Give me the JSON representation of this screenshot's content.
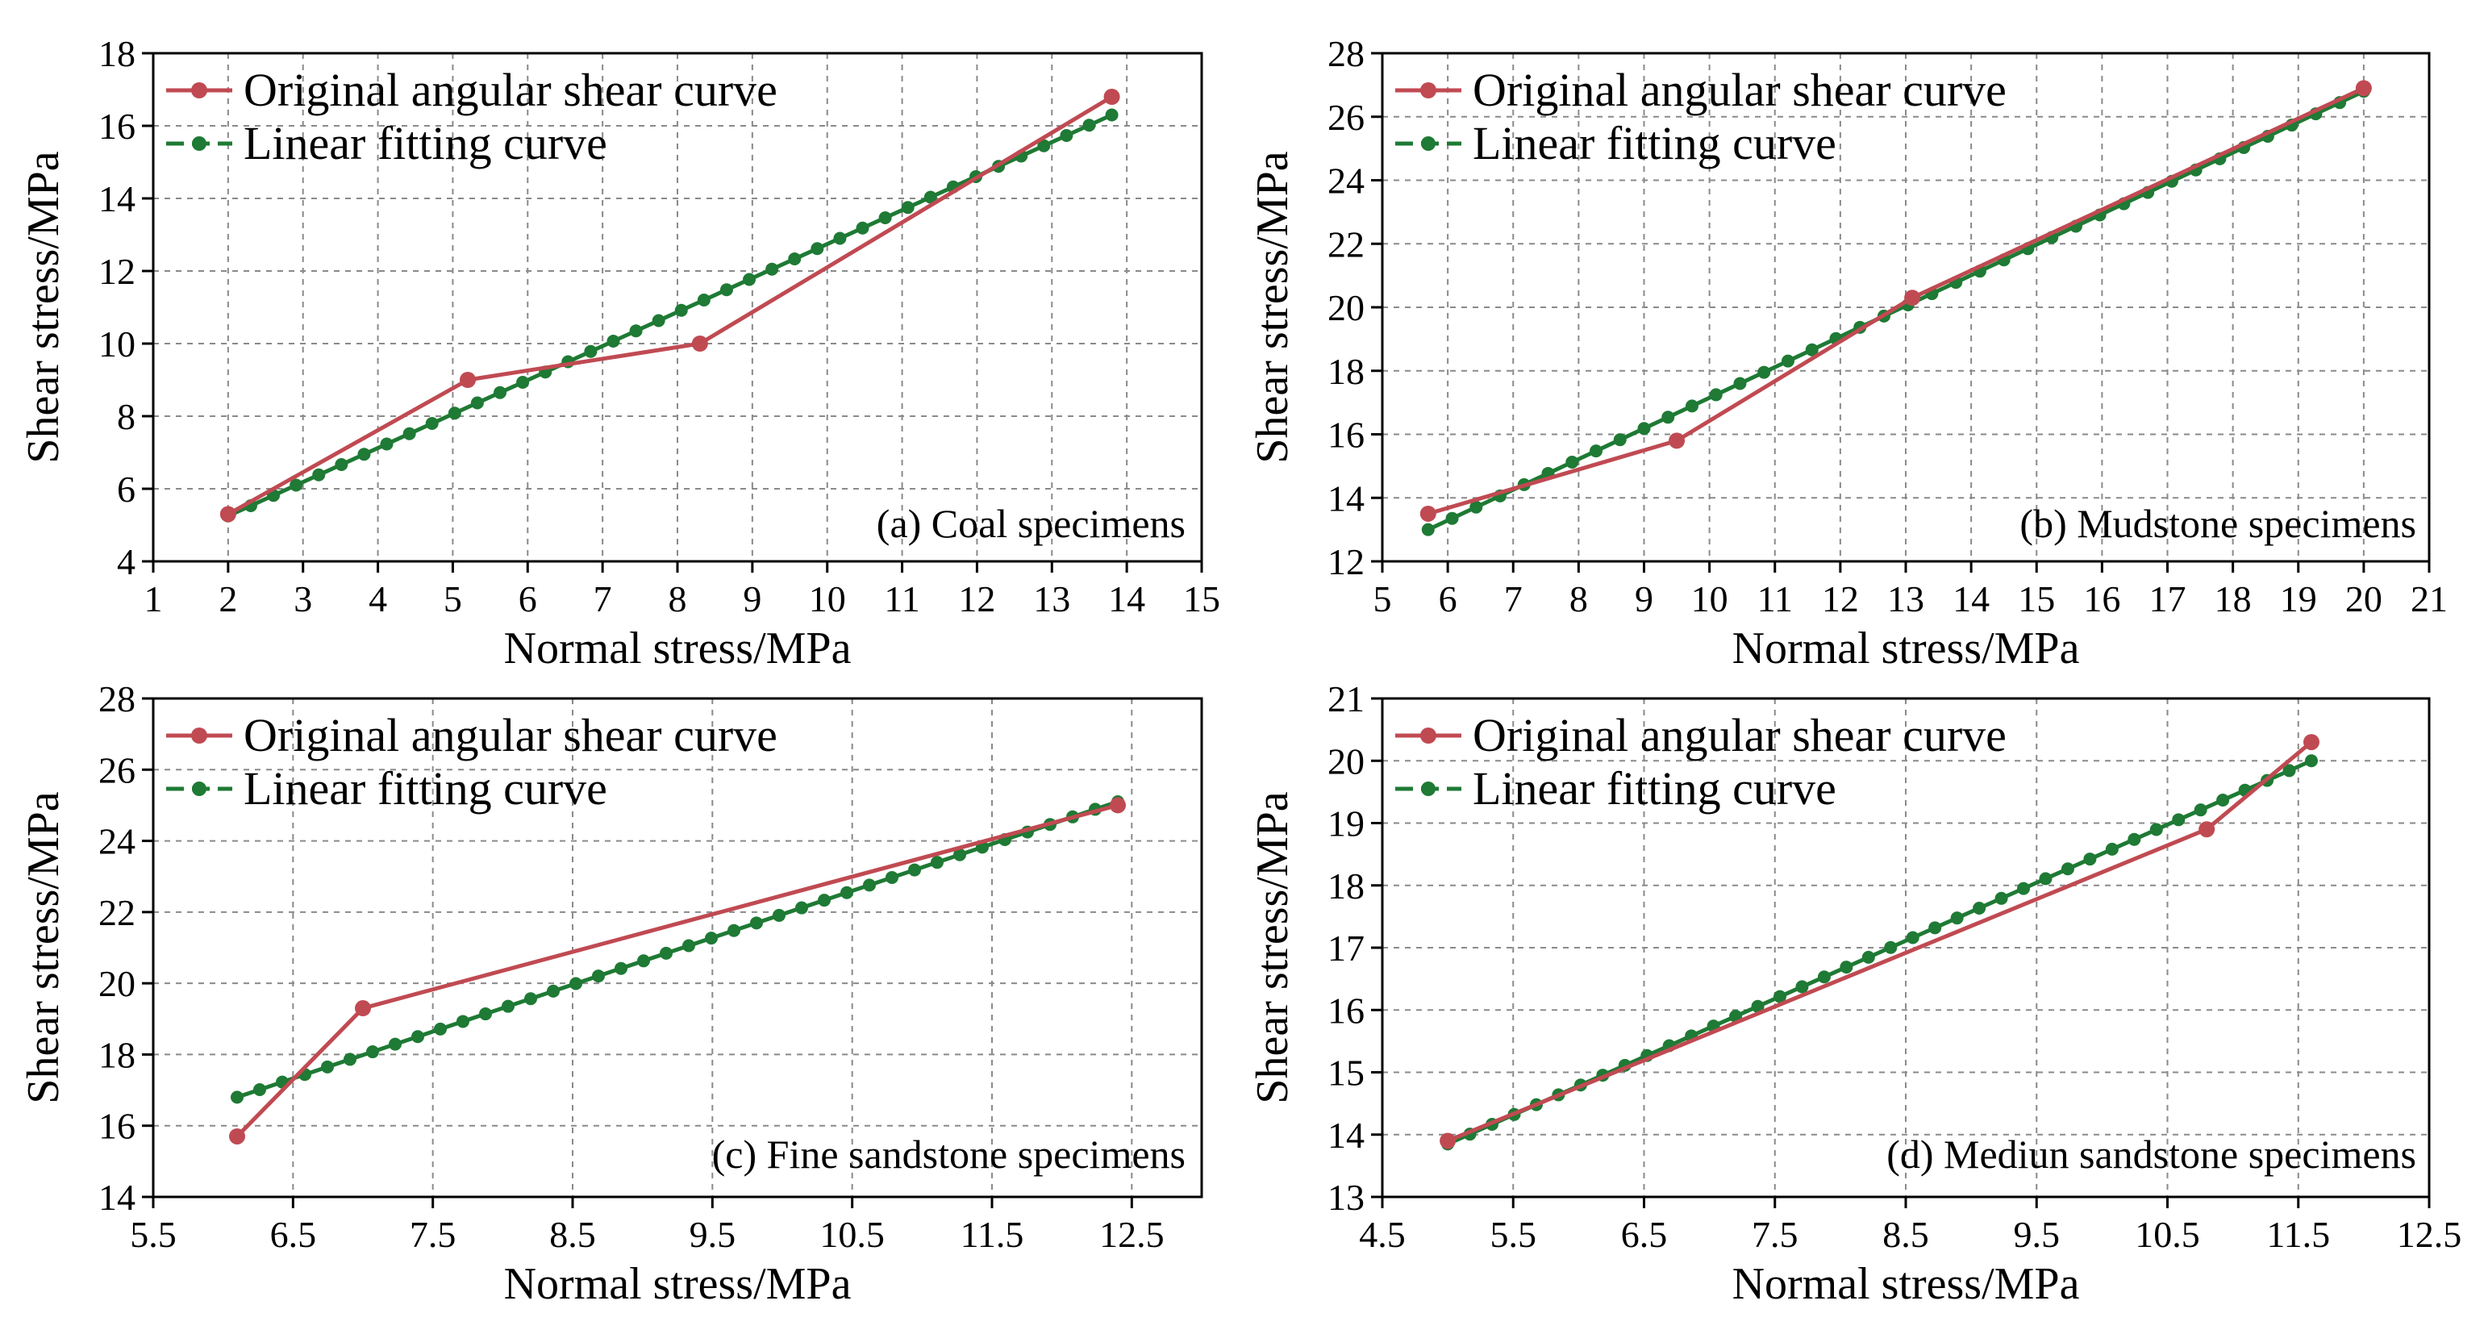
{
  "colors": {
    "original": "#c04a52",
    "fit": "#1e7a34",
    "grid": "#8a8a8a",
    "axis": "#000000"
  },
  "legend": {
    "original_label": "Original angular shear curve",
    "fit_label": "Linear fitting curve"
  },
  "chart_data": [
    {
      "type": "line",
      "id": "a",
      "annotation": "(a) Coal specimens",
      "xlabel": "Normal stress/MPa",
      "ylabel": "Shear stress/MPa",
      "xlim": [
        1,
        15
      ],
      "ylim": [
        4,
        18
      ],
      "xticks": [
        1,
        2,
        3,
        4,
        5,
        6,
        7,
        8,
        9,
        10,
        11,
        12,
        13,
        14,
        15
      ],
      "yticks": [
        4,
        6,
        8,
        10,
        12,
        14,
        16,
        18
      ],
      "grid": true,
      "legend_position": "top-left",
      "series": [
        {
          "name": "Original angular shear curve",
          "x": [
            2,
            5.2,
            8.3,
            13.8
          ],
          "y": [
            5.3,
            9.0,
            10.0,
            16.8
          ]
        },
        {
          "name": "Linear fitting curve",
          "x_start": 2.0,
          "x_end": 13.8,
          "y_start": 5.25,
          "y_end": 16.3,
          "points": 40
        }
      ]
    },
    {
      "type": "line",
      "id": "b",
      "annotation": "(b) Mudstone specimens",
      "xlabel": "Normal stress/MPa",
      "ylabel": "Shear stress/MPa",
      "xlim": [
        5,
        21
      ],
      "ylim": [
        12,
        28
      ],
      "xticks": [
        5,
        6,
        7,
        8,
        9,
        10,
        11,
        12,
        13,
        14,
        15,
        16,
        17,
        18,
        19,
        20,
        21
      ],
      "yticks": [
        12,
        14,
        16,
        18,
        20,
        22,
        24,
        26,
        28
      ],
      "grid": true,
      "legend_position": "top-left",
      "series": [
        {
          "name": "Original angular shear curve",
          "x": [
            5.7,
            9.5,
            13.1,
            20.0
          ],
          "y": [
            13.5,
            15.8,
            20.3,
            26.9
          ]
        },
        {
          "name": "Linear fitting curve",
          "x_start": 5.7,
          "x_end": 20.0,
          "y_start": 13.0,
          "y_end": 26.8,
          "points": 40
        }
      ]
    },
    {
      "type": "line",
      "id": "c",
      "annotation": "(c) Fine sandstone specimens",
      "xlabel": "Normal stress/MPa",
      "ylabel": "Shear stress/MPa",
      "xlim": [
        5.5,
        13
      ],
      "ylim": [
        14,
        28
      ],
      "xticks": [
        5.5,
        6.5,
        7.5,
        8.5,
        9.5,
        10.5,
        11.5,
        12.5
      ],
      "yticks": [
        14,
        16,
        18,
        20,
        22,
        24,
        26,
        28
      ],
      "grid": true,
      "legend_position": "top-left",
      "series": [
        {
          "name": "Original angular shear curve",
          "x": [
            6.1,
            7.0,
            12.4
          ],
          "y": [
            15.7,
            19.3,
            25.0
          ]
        },
        {
          "name": "Linear fitting curve",
          "x_start": 6.1,
          "x_end": 12.4,
          "y_start": 16.8,
          "y_end": 25.1,
          "points": 40
        }
      ]
    },
    {
      "type": "line",
      "id": "d",
      "annotation": "(d) Mediun sandstone specimens",
      "xlabel": "Normal stress/MPa",
      "ylabel": "Shear stress/MPa",
      "xlim": [
        4.5,
        12.5
      ],
      "ylim": [
        13,
        21
      ],
      "xticks": [
        4.5,
        5.5,
        6.5,
        7.5,
        8.5,
        9.5,
        10.5,
        11.5,
        12.5
      ],
      "yticks": [
        13,
        14,
        15,
        16,
        17,
        18,
        19,
        20,
        21
      ],
      "grid": true,
      "legend_position": "top-left",
      "series": [
        {
          "name": "Original angular shear curve",
          "x": [
            5.0,
            10.8,
            11.6
          ],
          "y": [
            13.9,
            18.9,
            20.3
          ]
        },
        {
          "name": "Linear fitting curve",
          "x_start": 5.0,
          "x_end": 11.6,
          "y_start": 13.85,
          "y_end": 20.0,
          "points": 40
        }
      ]
    }
  ]
}
